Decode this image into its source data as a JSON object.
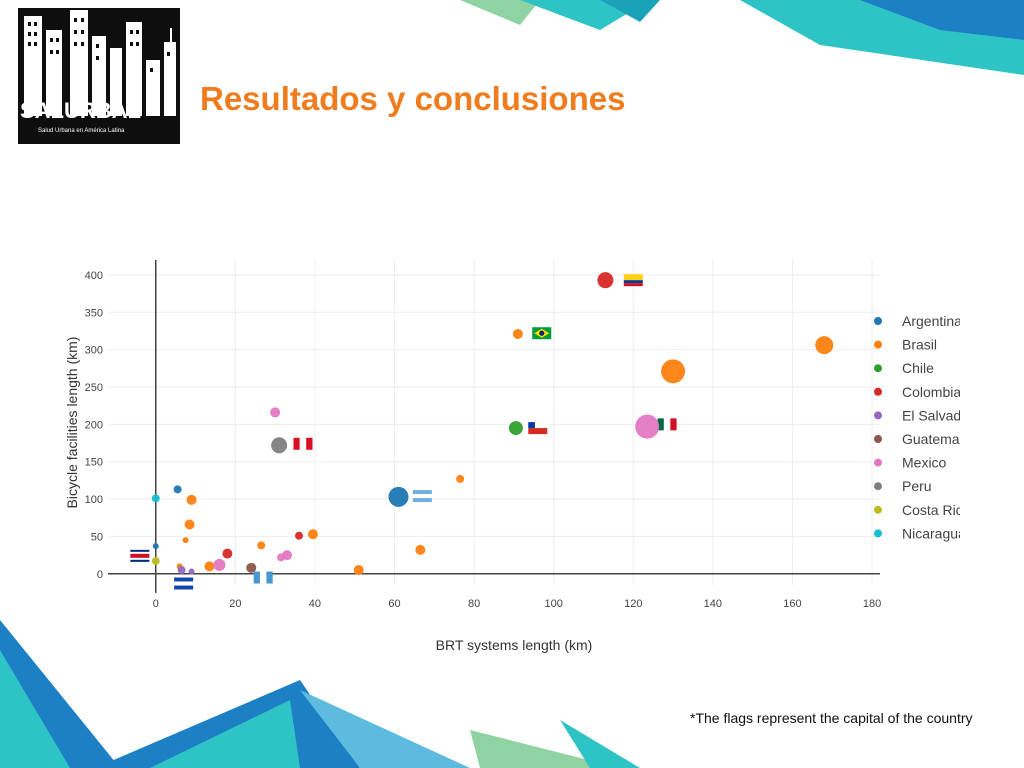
{
  "header": {
    "logo_text": "SALURBAL",
    "logo_subtitle": "Salud Urbana en América Latina",
    "title": "Resultados y conclusiones"
  },
  "footnote": "*The flags represent the capital of the country",
  "colors": {
    "title": "#f07c1e",
    "deco_teal": "#2ec4c6",
    "deco_blue": "#1d7fc4",
    "deco_green": "#8fd3a2"
  },
  "chart_data": {
    "type": "scatter",
    "xlabel": "BRT systems length (km)",
    "ylabel": "Bicycle facilities length (km)",
    "xlim": [
      -12,
      182
    ],
    "ylim": [
      -15,
      420
    ],
    "x_ticks": [
      0,
      20,
      40,
      60,
      80,
      100,
      120,
      140,
      160,
      180
    ],
    "y_ticks": [
      0,
      50,
      100,
      150,
      200,
      250,
      300,
      350,
      400
    ],
    "grid": true,
    "legend_position": "right",
    "series": [
      {
        "name": "Argentina",
        "color": "#1f77b4",
        "points": [
          [
            5.5,
            113,
            4
          ],
          [
            61,
            103,
            10
          ],
          [
            0,
            37,
            3
          ]
        ]
      },
      {
        "name": "Brasil",
        "color": "#ff7f0e",
        "points": [
          [
            9,
            99,
            5
          ],
          [
            8.5,
            66,
            5
          ],
          [
            7.5,
            45,
            3
          ],
          [
            26.5,
            38,
            4
          ],
          [
            39.5,
            53,
            5
          ],
          [
            13.5,
            10,
            5
          ],
          [
            6,
            10,
            3
          ],
          [
            51,
            5,
            5
          ],
          [
            66.5,
            32,
            5
          ],
          [
            76.5,
            127,
            4
          ],
          [
            91,
            321,
            5
          ],
          [
            168,
            306,
            9
          ],
          [
            130,
            271,
            12
          ]
        ]
      },
      {
        "name": "Chile",
        "color": "#2ca02c",
        "points": [
          [
            90.5,
            195,
            7
          ]
        ]
      },
      {
        "name": "Colombia",
        "color": "#d62728",
        "points": [
          [
            113,
            393,
            8
          ],
          [
            18,
            27,
            5
          ],
          [
            36,
            51,
            4
          ]
        ]
      },
      {
        "name": "El Salvador",
        "color": "#9467bd",
        "points": [
          [
            6.5,
            5,
            4
          ],
          [
            9,
            3,
            3
          ]
        ]
      },
      {
        "name": "Guatemala",
        "color": "#8c564b",
        "points": [
          [
            24,
            8,
            5
          ]
        ]
      },
      {
        "name": "Mexico",
        "color": "#e377c2",
        "points": [
          [
            30,
            216,
            5
          ],
          [
            123.5,
            197,
            12
          ],
          [
            33,
            25,
            5
          ],
          [
            31.5,
            22,
            4
          ],
          [
            16,
            12,
            6
          ]
        ]
      },
      {
        "name": "Peru",
        "color": "#7f7f7f",
        "points": [
          [
            31,
            172,
            8
          ]
        ]
      },
      {
        "name": "Costa Rica",
        "color": "#bcbd22",
        "points": [
          [
            0,
            17,
            4
          ]
        ]
      },
      {
        "name": "Nicaragua",
        "color": "#17becf",
        "points": [
          [
            0,
            101,
            4
          ]
        ]
      }
    ],
    "flags": [
      {
        "country": "Colombia",
        "x": 120,
        "y": 393
      },
      {
        "country": "Brasil",
        "x": 97,
        "y": 322
      },
      {
        "country": "Mexico",
        "x": 128.5,
        "y": 200
      },
      {
        "country": "Chile",
        "x": 96,
        "y": 195
      },
      {
        "country": "Peru",
        "x": 37,
        "y": 174
      },
      {
        "country": "Argentina",
        "x": 67,
        "y": 104
      },
      {
        "country": "Costa Rica",
        "x": -4,
        "y": 24
      },
      {
        "country": "Guatemala",
        "x": 27,
        "y": -5
      },
      {
        "country": "El Salvador",
        "x": 7,
        "y": -13
      }
    ]
  }
}
